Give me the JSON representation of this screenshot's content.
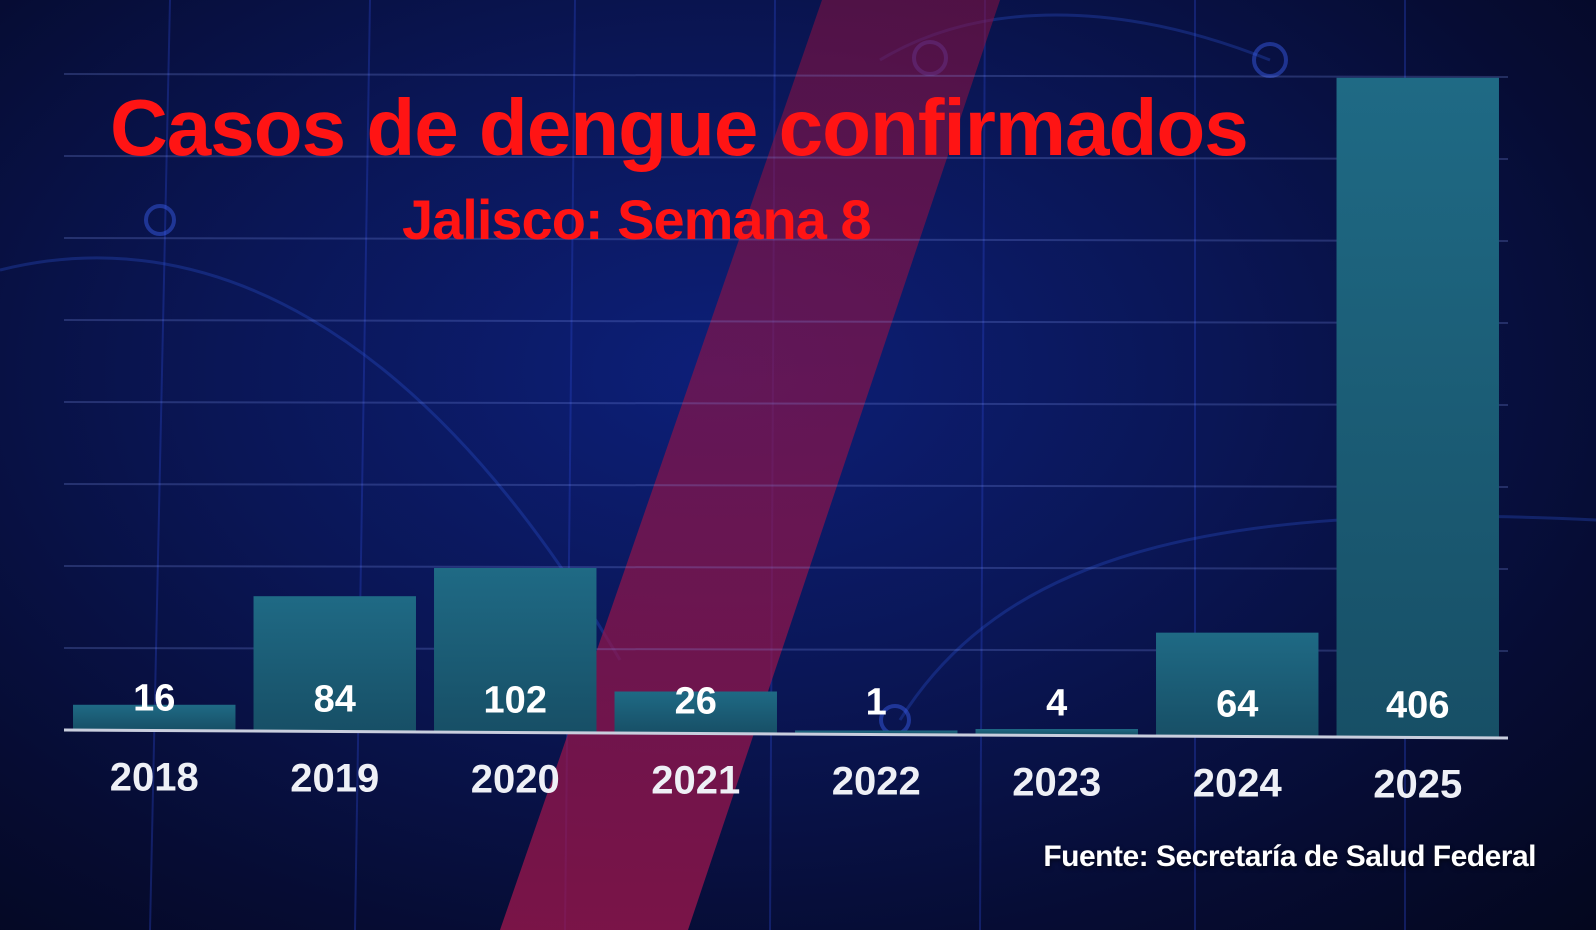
{
  "chart_data": {
    "type": "bar",
    "title": "Casos de dengue confirmados",
    "subtitle": "Jalisco: Semana 8",
    "categories": [
      "2018",
      "2019",
      "2020",
      "2021",
      "2022",
      "2023",
      "2024",
      "2025"
    ],
    "values": [
      16,
      84,
      102,
      26,
      1,
      4,
      64,
      406
    ],
    "data_labels": [
      "16",
      "84",
      "102",
      "26",
      "1",
      "4",
      "64",
      "406"
    ],
    "xlabel": "",
    "ylabel": "",
    "ylim": [
      0,
      420
    ],
    "grid": true,
    "legend": "none",
    "colors": {
      "bar": "#1b5f78",
      "bar_top": "#1f6a85",
      "title": "#ff1414",
      "label": "#ffffff",
      "tick_label": "#eef0f6",
      "baseline": "#c9cede",
      "stripe": "#8a1040"
    }
  },
  "source": "Fuente: Secretaría de Salud Federal"
}
